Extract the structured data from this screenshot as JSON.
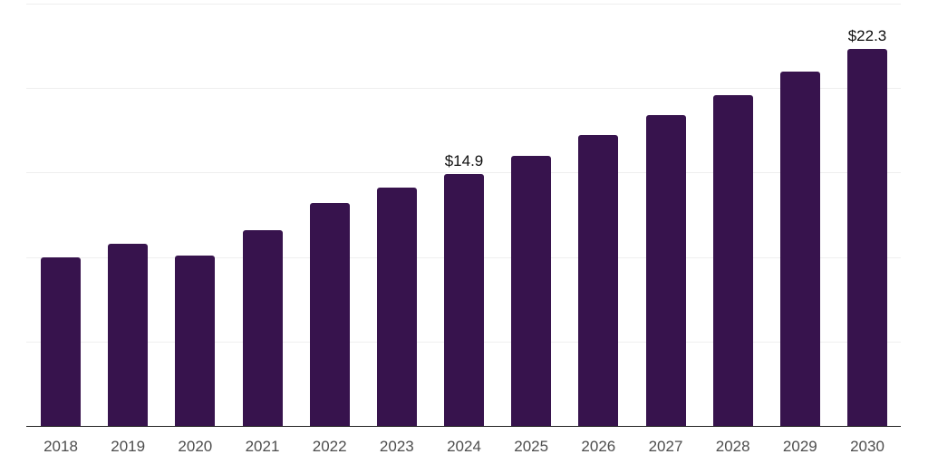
{
  "chart": {
    "background_color": "#ffffff",
    "bar_color": "#37134d",
    "gridline_color": "#efefef",
    "axis_line_color": "#222222",
    "tick_label_color": "#4d4d4d",
    "data_label_color": "#0f0f0f"
  },
  "chart_data": {
    "type": "bar",
    "title": "",
    "xlabel": "",
    "ylabel": "",
    "categories": [
      "2018",
      "2019",
      "2020",
      "2021",
      "2022",
      "2023",
      "2024",
      "2025",
      "2026",
      "2027",
      "2028",
      "2029",
      "2030"
    ],
    "values": [
      10.0,
      10.8,
      10.1,
      11.6,
      13.2,
      14.1,
      14.9,
      16.0,
      17.2,
      18.4,
      19.6,
      21.0,
      22.3
    ],
    "annotations": [
      {
        "category": "2024",
        "text": "$14.9"
      },
      {
        "category": "2030",
        "text": "$22.3"
      }
    ],
    "ylim": [
      0,
      25
    ],
    "grid_interval": 5,
    "y_gridlines": [
      5,
      10,
      15,
      20,
      25
    ],
    "grid": true,
    "legend": false,
    "y_axis_labels_visible": false,
    "currency_prefix": "$"
  }
}
